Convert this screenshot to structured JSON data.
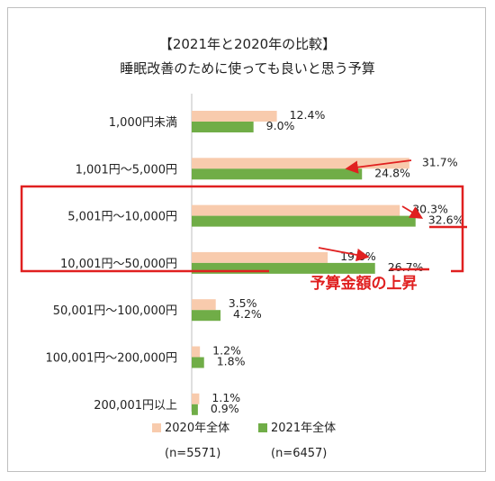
{
  "chart_data": {
    "type": "bar",
    "orientation": "horizontal",
    "title": "【2021年と2020年の比較】",
    "subtitle": "睡眠改善のために使っても良いと思う予算",
    "categories": [
      "1,000円未満",
      "1,001円～5,000円",
      "5,001円～10,000円",
      "10,001円～50,000円",
      "50,001円～100,000円",
      "100,001円～200,000円",
      "200,001円以上"
    ],
    "series": [
      {
        "name": "2020年全体",
        "n_label": "(n=5571)",
        "color": "#f8cbad",
        "values": [
          12.4,
          31.7,
          30.3,
          19.8,
          3.5,
          1.2,
          1.1
        ],
        "labels": [
          "12.4%",
          "31.7%",
          "30.3%",
          "19.8%",
          "3.5%",
          "1.2%",
          "1.1%"
        ]
      },
      {
        "name": "2021年全体",
        "n_label": "(n=6457)",
        "color": "#70ad47",
        "values": [
          9.0,
          24.8,
          32.6,
          26.7,
          4.2,
          1.8,
          0.9
        ],
        "labels": [
          "9.0%",
          "24.8%",
          "32.6%",
          "26.7%",
          "4.2%",
          "1.8%",
          "0.9%"
        ]
      }
    ],
    "xlim": [
      0,
      35
    ],
    "grid": false,
    "legend_position": "bottom",
    "annotation": {
      "text": "予算金額の上昇",
      "color": "#e02020",
      "highlighted_categories": [
        2,
        3
      ],
      "underlined_labels": [
        "32.6%",
        "26.7%"
      ]
    }
  }
}
